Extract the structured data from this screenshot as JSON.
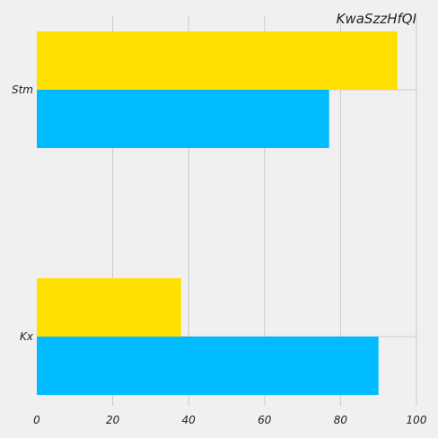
{
  "chart_data": {
    "type": "bar",
    "orientation": "horizontal",
    "title": "KwaSzzHfQI",
    "xlabel": "",
    "ylabel": "",
    "categories": [
      "Stm",
      "Kx"
    ],
    "series": [
      {
        "color": "#ffe000",
        "values": [
          95,
          38
        ]
      },
      {
        "color": "#00bbff",
        "values": [
          77,
          90
        ]
      }
    ],
    "xlim": [
      0,
      100
    ],
    "xticks": [
      "0",
      "20",
      "40",
      "60",
      "80",
      "100"
    ],
    "grid": "vertical",
    "legend": "none"
  }
}
